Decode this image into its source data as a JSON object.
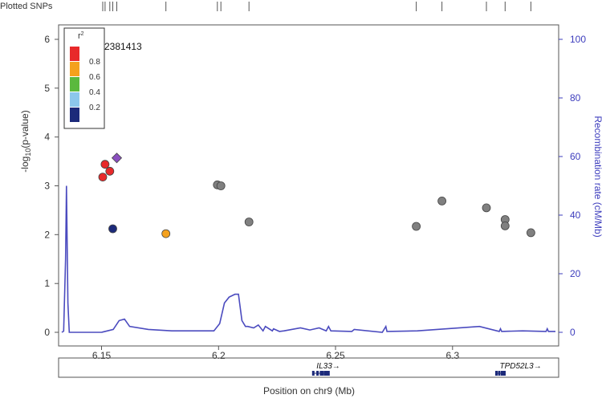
{
  "strip_label": "Plotted SNPs",
  "chart_data": {
    "type": "scatter",
    "xlabel": "Position on chr9 (Mb)",
    "ylabel_left": "-log10(p-value)",
    "ylabel_right": "Recombination rate (cM/Mb)",
    "xlim": [
      6.133,
      6.344
    ],
    "ylim_left": [
      0,
      6
    ],
    "ylim_right": [
      0,
      100
    ],
    "x_ticks": [
      6.15,
      6.2,
      6.25,
      6.3
    ],
    "x_tick_labels": [
      "6.15",
      "6.2",
      "6.25",
      "6.3"
    ],
    "y_left_ticks": [
      0,
      1,
      2,
      3,
      4,
      5,
      6
    ],
    "y_left_tick_labels": [
      "0",
      "1",
      "2",
      "3",
      "4",
      "5",
      "6"
    ],
    "y_right_ticks": [
      0,
      20,
      40,
      60,
      80,
      100
    ],
    "y_right_tick_labels": [
      "0",
      "20",
      "40",
      "60",
      "80",
      "100"
    ],
    "annotation": "2381413",
    "legend": {
      "title": "r2",
      "bins": [
        {
          "color": "#e8292a",
          "label": "0.8"
        },
        {
          "color": "#f4a11d",
          "label": "0.6"
        },
        {
          "color": "#5ab93e",
          "label": "0.4"
        },
        {
          "color": "#8cc7ec",
          "label": "0.2"
        },
        {
          "color": "#1c2a7a",
          "label": ""
        }
      ]
    },
    "lead_snp": {
      "x": 6.1565,
      "y": 3.57,
      "color": "#8a4fbf",
      "shape": "diamond"
    },
    "points": [
      {
        "x": 6.1515,
        "y": 3.44,
        "color": "#e8292a"
      },
      {
        "x": 6.1535,
        "y": 3.3,
        "color": "#e8292a"
      },
      {
        "x": 6.1505,
        "y": 3.18,
        "color": "#e8292a"
      },
      {
        "x": 6.1548,
        "y": 2.12,
        "color": "#1c2a7a"
      },
      {
        "x": 6.1775,
        "y": 2.02,
        "color": "#f4a11d"
      },
      {
        "x": 6.1995,
        "y": 3.02,
        "color": "#808080"
      },
      {
        "x": 6.201,
        "y": 3.0,
        "color": "#808080"
      },
      {
        "x": 6.213,
        "y": 2.26,
        "color": "#808080"
      },
      {
        "x": 6.2845,
        "y": 2.17,
        "color": "#808080"
      },
      {
        "x": 6.2955,
        "y": 2.69,
        "color": "#808080"
      },
      {
        "x": 6.3145,
        "y": 2.55,
        "color": "#808080"
      },
      {
        "x": 6.3225,
        "y": 2.31,
        "color": "#808080"
      },
      {
        "x": 6.3225,
        "y": 2.18,
        "color": "#808080"
      },
      {
        "x": 6.3335,
        "y": 2.04,
        "color": "#808080"
      }
    ],
    "snp_positions": [
      6.1505,
      6.1515,
      6.1535,
      6.1548,
      6.1565,
      6.1775,
      6.1995,
      6.201,
      6.213,
      6.2845,
      6.2955,
      6.3145,
      6.3225,
      6.3335
    ],
    "recombination_rate": {
      "color": "#4b4bbf",
      "x": [
        6.133,
        6.1338,
        6.1346,
        6.135,
        6.1356,
        6.1362,
        6.14,
        6.15,
        6.155,
        6.1575,
        6.1598,
        6.162,
        6.17,
        6.18,
        6.19,
        6.198,
        6.2005,
        6.2025,
        6.2045,
        6.207,
        6.2085,
        6.21,
        6.2115,
        6.2125,
        6.215,
        6.217,
        6.219,
        6.22,
        6.223,
        6.2235,
        6.226,
        6.228,
        6.235,
        6.239,
        6.243,
        6.246,
        6.247,
        6.248,
        6.257,
        6.258,
        6.27,
        6.2715,
        6.272,
        6.285,
        6.3115,
        6.32,
        6.3205,
        6.321,
        6.33,
        6.34,
        6.3405,
        6.341,
        6.344
      ],
      "y": [
        0,
        0.4,
        25,
        50,
        10,
        0,
        0,
        0,
        1,
        4,
        4.5,
        2,
        1,
        0.5,
        0.5,
        0.5,
        3,
        10,
        12,
        13,
        13,
        4,
        2,
        2,
        1.5,
        2.5,
        0.5,
        2,
        0.5,
        1.2,
        0.3,
        0.5,
        1.5,
        0.8,
        1.5,
        0.5,
        2,
        0.5,
        0.3,
        1,
        0,
        2,
        0.3,
        0.5,
        2,
        0.3,
        1.2,
        0.3,
        0.5,
        0.3,
        1.2,
        0.3,
        0.3
      ]
    },
    "genes": [
      {
        "name": "IL33",
        "start": 6.2405,
        "end": 6.247,
        "strand": "+",
        "exons": [
          6.2405,
          6.2423,
          6.2438,
          6.2445,
          6.2456,
          6.2464,
          6.247
        ]
      },
      {
        "name": "TPD52L3",
        "start": 6.3188,
        "end": 6.3222,
        "strand": "+",
        "exons": [
          6.3188,
          6.32,
          6.3212,
          6.3222
        ]
      }
    ]
  }
}
